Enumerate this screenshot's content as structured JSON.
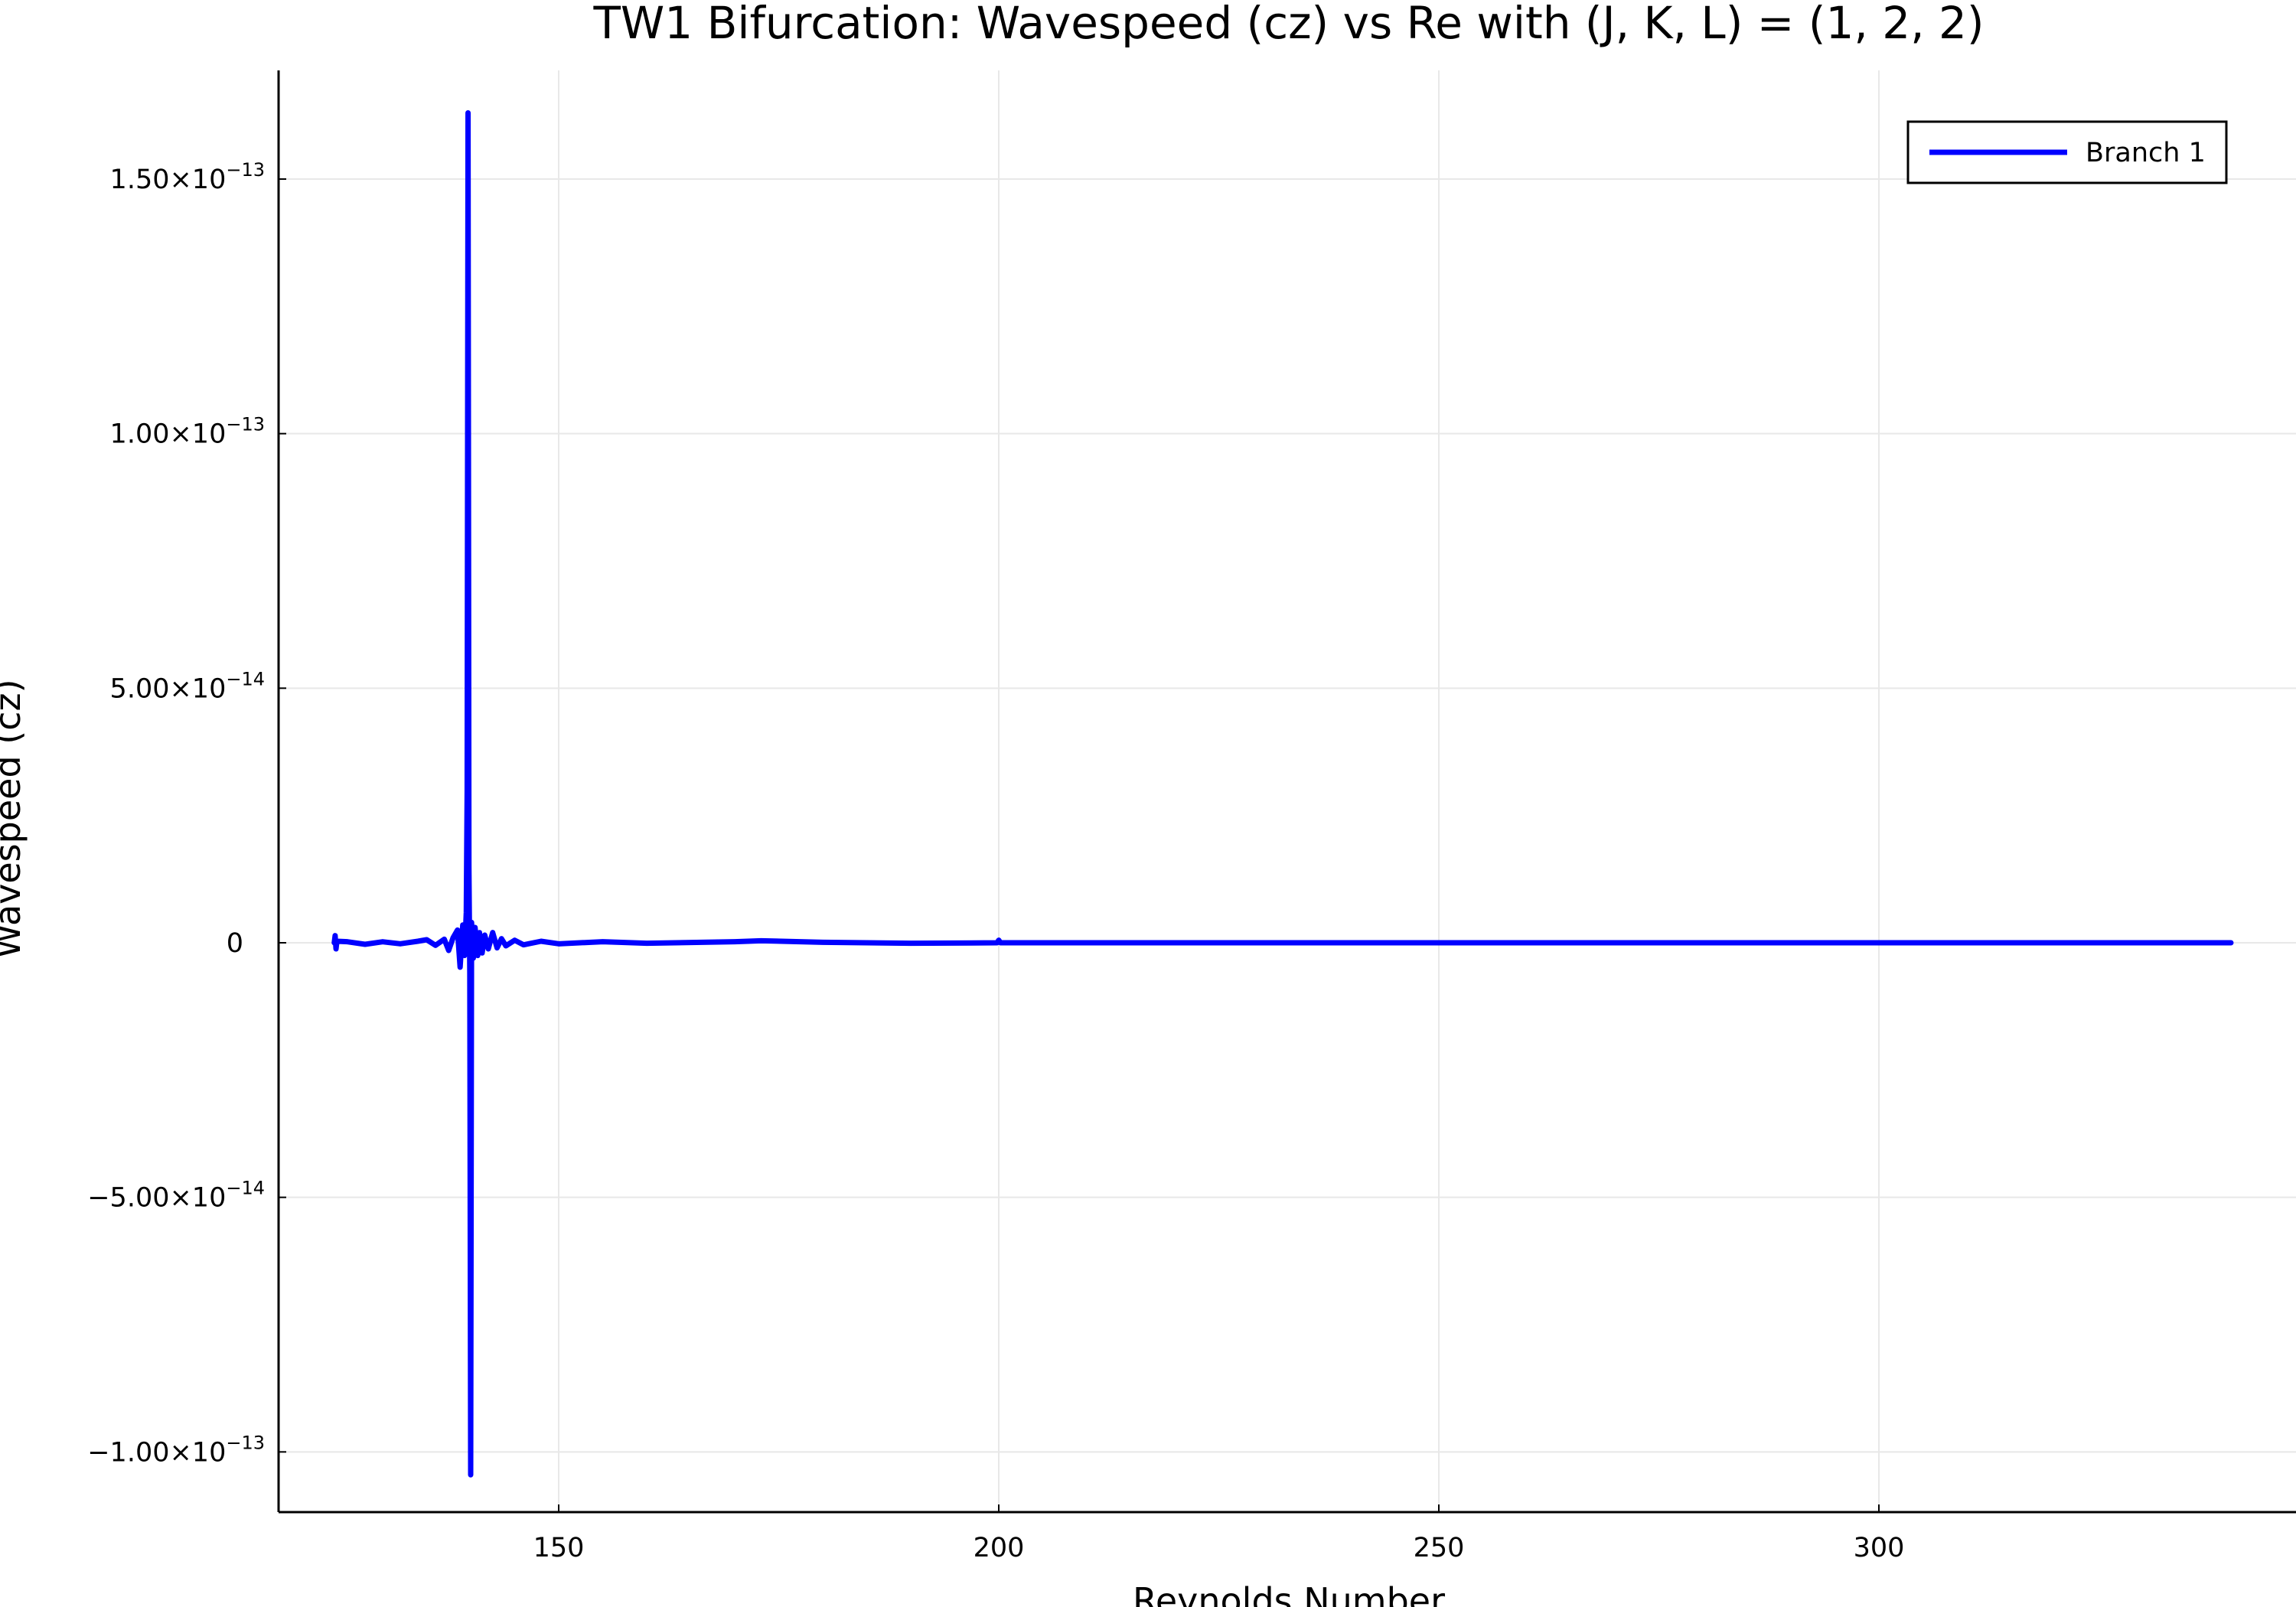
{
  "chart_data": {
    "type": "line",
    "title": "TW1 Bifurcation: Wavespeed (cz) vs Re with (J, K, L) = (1, 2, 2)",
    "xlabel": "Reynolds Number",
    "ylabel": "Wavespeed (cz)",
    "xlim": [
      118,
      347
    ],
    "ylim": [
      -1.125e-13,
      1.7e-13
    ],
    "x_ticks": [
      150,
      200,
      250,
      300
    ],
    "x_tick_labels": [
      "150",
      "200",
      "250",
      "300"
    ],
    "y_ticks": [
      {
        "value": 1.5e-13,
        "mantissa": "1.50×10",
        "exponent": "−13"
      },
      {
        "value": 1e-13,
        "mantissa": "1.00×10",
        "exponent": "−13"
      },
      {
        "value": 5e-14,
        "mantissa": "5.00×10",
        "exponent": "−14"
      },
      {
        "value": 0,
        "mantissa": "0",
        "exponent": ""
      },
      {
        "value": -5e-14,
        "mantissa": "−5.00×10",
        "exponent": "−14"
      },
      {
        "value": -1e-13,
        "mantissa": "−1.00×10",
        "exponent": "−13"
      }
    ],
    "grid": true,
    "legend_position": "top-right",
    "series": [
      {
        "name": "Branch 1",
        "color": "#0000ff",
        "points": [
          [
            124.5,
            0
          ],
          [
            124.6,
            1.4e-15
          ],
          [
            124.7,
            -1.2e-15
          ],
          [
            124.8,
            3e-16
          ],
          [
            126,
            2e-16
          ],
          [
            128,
            -3e-16
          ],
          [
            130,
            2e-16
          ],
          [
            132,
            -2e-16
          ],
          [
            134,
            3e-16
          ],
          [
            135,
            6e-16
          ],
          [
            136,
            -5e-16
          ],
          [
            137,
            7e-16
          ],
          [
            137.5,
            -1.5e-15
          ],
          [
            138,
            1e-15
          ],
          [
            138.5,
            2.5e-15
          ],
          [
            138.8,
            -4.8e-15
          ],
          [
            139.1,
            3.5e-15
          ],
          [
            139.3,
            -2.5e-15
          ],
          [
            139.5,
            6e-15
          ],
          [
            139.6,
            3e-14
          ],
          [
            139.7,
            1.63e-13
          ],
          [
            139.8,
            1.5e-14
          ],
          [
            139.9,
            -6e-15
          ],
          [
            140.0,
            -1.045e-13
          ],
          [
            140.1,
            4e-15
          ],
          [
            140.3,
            -3e-15
          ],
          [
            140.5,
            3e-15
          ],
          [
            140.8,
            -2.5e-15
          ],
          [
            141.0,
            2e-15
          ],
          [
            141.3,
            -2e-15
          ],
          [
            141.6,
            1.5e-15
          ],
          [
            142,
            -1.2e-15
          ],
          [
            142.5,
            2e-15
          ],
          [
            143,
            -1e-15
          ],
          [
            143.5,
            8e-16
          ],
          [
            144,
            -6e-16
          ],
          [
            145,
            5e-16
          ],
          [
            146,
            -4e-16
          ],
          [
            148,
            3e-16
          ],
          [
            150,
            -2e-16
          ],
          [
            155,
            2e-16
          ],
          [
            160,
            -1e-16
          ],
          [
            170,
            2e-16
          ],
          [
            173,
            4e-16
          ],
          [
            180,
            1e-16
          ],
          [
            190,
            -1e-16
          ],
          [
            199.8,
            0
          ],
          [
            200,
            5e-16
          ],
          [
            200.2,
            0
          ],
          [
            220,
            0
          ],
          [
            250,
            0
          ],
          [
            280,
            0
          ],
          [
            300,
            0
          ],
          [
            320,
            0
          ],
          [
            340,
            0
          ]
        ]
      }
    ]
  }
}
